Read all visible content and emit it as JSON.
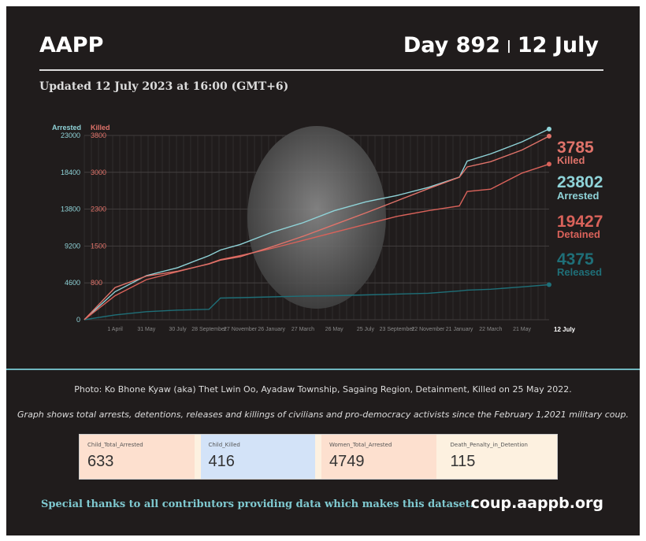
{
  "header": {
    "brand": "AAPP",
    "day": "Day 892",
    "date": "12 July",
    "separator": "|",
    "updated": "Updated 12 July 2023 at 16:00 (GMT+6)"
  },
  "colors": {
    "background": "#201c1c",
    "arrested": "#8fd3d8",
    "killed": "#e0736a",
    "detained": "#d9625a",
    "released": "#1f6f78"
  },
  "chart_data": {
    "type": "line",
    "x_range": [
      "2021-02-01",
      "2023-07-12"
    ],
    "x_ticks": [
      {
        "date": "2021-04-01",
        "label": "1 April"
      },
      {
        "date": "2021-05-31",
        "label": "31 May"
      },
      {
        "date": "2021-07-30",
        "label": "30 July"
      },
      {
        "date": "2021-09-28",
        "label": "28 September"
      },
      {
        "date": "2021-11-27",
        "label": "27 November"
      },
      {
        "date": "2022-01-26",
        "label": "26 January"
      },
      {
        "date": "2022-03-27",
        "label": "27 March"
      },
      {
        "date": "2022-05-26",
        "label": "26 May"
      },
      {
        "date": "2022-07-25",
        "label": "25 July"
      },
      {
        "date": "2022-09-23",
        "label": "23 September"
      },
      {
        "date": "2022-11-22",
        "label": "22 November"
      },
      {
        "date": "2023-01-21",
        "label": "21 January"
      },
      {
        "date": "2023-03-22",
        "label": "22 March"
      },
      {
        "date": "2023-05-21",
        "label": "21 May"
      }
    ],
    "x_end_label": "12 July",
    "left_axis": {
      "label": "Arrested",
      "ticks": [
        0,
        4600,
        9200,
        13800,
        18400,
        23000
      ],
      "range": [
        0,
        23000
      ]
    },
    "right_axis": {
      "label": "Killed",
      "ticks": [
        "800",
        "1500",
        "2300",
        "3000",
        "3800"
      ],
      "range": [
        0,
        3800
      ]
    },
    "grid": true,
    "x": [
      "2021-02-01",
      "2021-04-01",
      "2021-05-31",
      "2021-07-30",
      "2021-09-28",
      "2021-10-20",
      "2021-11-27",
      "2022-01-26",
      "2022-03-27",
      "2022-05-26",
      "2022-07-25",
      "2022-09-23",
      "2022-11-22",
      "2023-01-21",
      "2023-02-05",
      "2023-03-22",
      "2023-05-21",
      "2023-07-12"
    ],
    "series": [
      {
        "name": "Arrested",
        "axis": "left",
        "values": [
          0,
          3500,
          5500,
          6500,
          8000,
          8700,
          9400,
          10900,
          12100,
          13600,
          14700,
          15500,
          16500,
          17800,
          19800,
          20700,
          22200,
          23802
        ]
      },
      {
        "name": "Detained",
        "axis": "left",
        "values": [
          0,
          3000,
          5000,
          6000,
          7000,
          7500,
          8000,
          8900,
          9900,
          10900,
          11900,
          12900,
          13600,
          14200,
          16000,
          16300,
          18300,
          19427
        ]
      },
      {
        "name": "Released",
        "axis": "left",
        "values": [
          0,
          600,
          1000,
          1200,
          1300,
          2700,
          2750,
          2850,
          2950,
          3000,
          3100,
          3200,
          3300,
          3600,
          3700,
          3800,
          4100,
          4375
        ]
      },
      {
        "name": "Killed",
        "axis": "right",
        "values": [
          0,
          665,
          900,
          1000,
          1150,
          1230,
          1300,
          1500,
          1720,
          1960,
          2200,
          2450,
          2700,
          2940,
          3150,
          3260,
          3500,
          3785
        ]
      }
    ],
    "end_labels": [
      {
        "value": "3785",
        "name": "Killed"
      },
      {
        "value": "23802",
        "name": "Arrested"
      },
      {
        "value": "19427",
        "name": "Detained"
      },
      {
        "value": "4375",
        "name": "Released"
      }
    ]
  },
  "caption": "Photo: Ko Bhone Kyaw (aka) Thet Lwin Oo, Ayadaw Township, Sagaing Region, Detainment, Killed on 25 May 2022.",
  "note": "Graph shows total arrests, detentions, releases and killings of civilians and pro-democracy activists since the February 1,2021 military coup.",
  "cards": [
    {
      "label": "Child_Total_Arrested",
      "value": "633",
      "color": "#fde0cf"
    },
    {
      "label": "Child_Killed",
      "value": "416",
      "color": "#d3e3f8"
    },
    {
      "label": "Women_Total_Arrested",
      "value": "4749",
      "color": "#fde0cf"
    },
    {
      "label": "Death_Penalty_in_Detention",
      "value": "115",
      "color": "#fdf1e0"
    }
  ],
  "footer": {
    "thanks": "Special thanks to all contributors providing data which makes this dataset.",
    "site": "coup.aappb.org"
  }
}
